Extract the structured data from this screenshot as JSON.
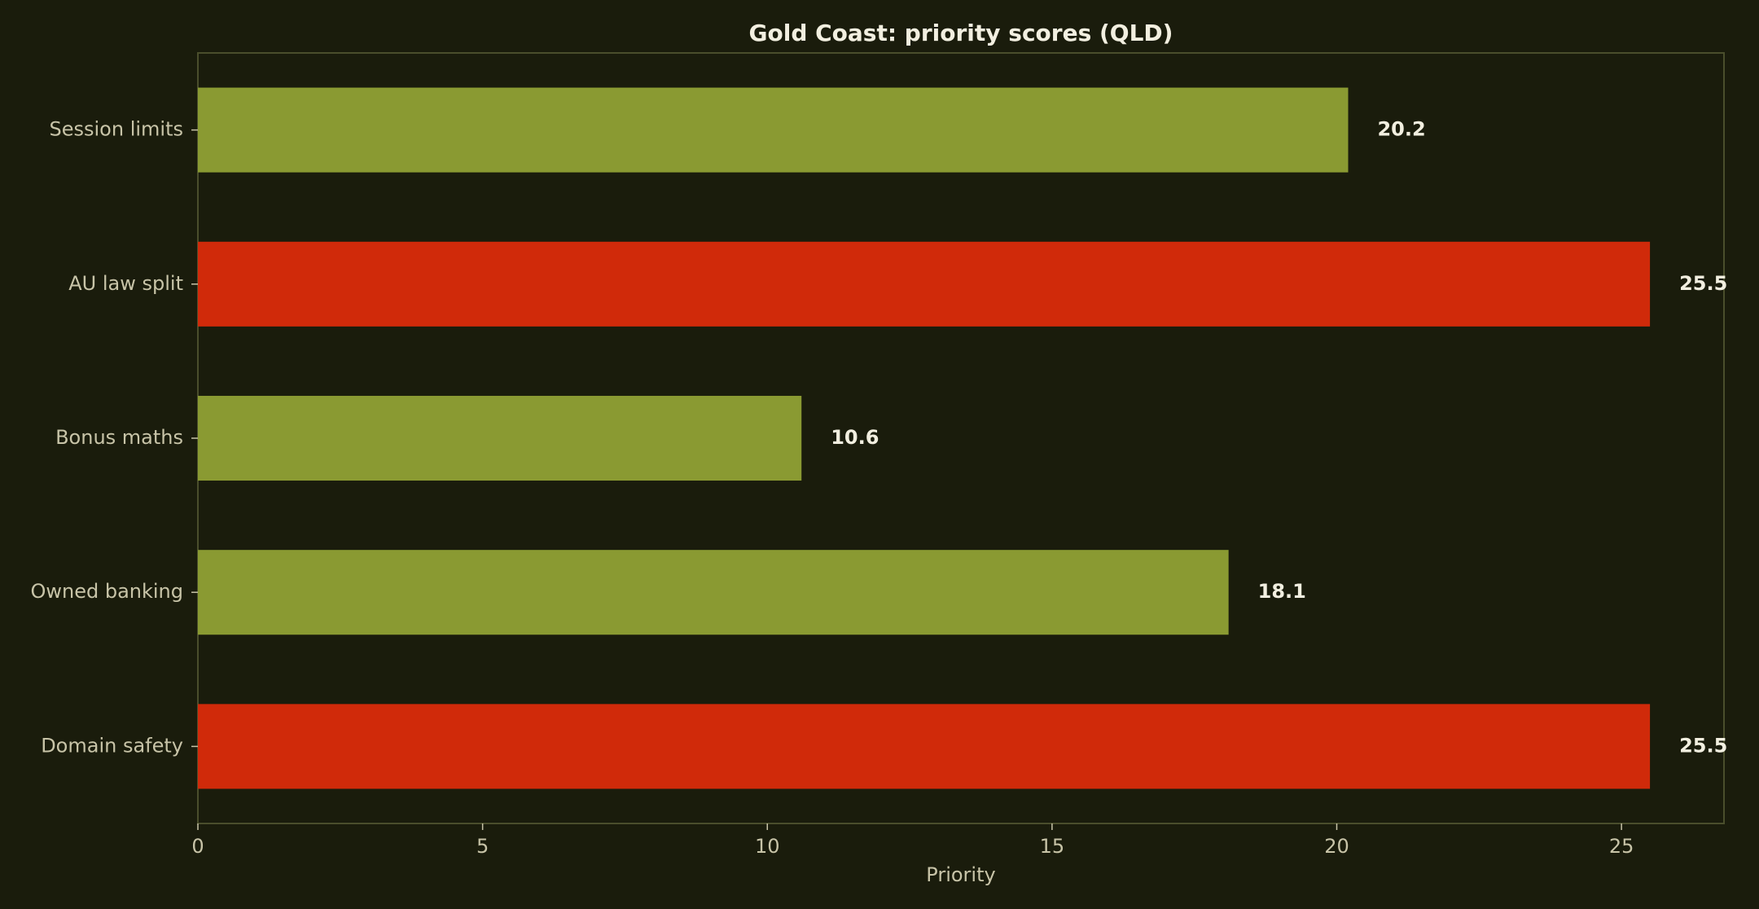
{
  "chart_data": {
    "type": "bar",
    "orientation": "horizontal",
    "title": "Gold Coast: priority scores (QLD)",
    "xlabel": "Priority",
    "ylabel": "",
    "categories": [
      "Session limits",
      "AU law split",
      "Bonus maths",
      "Owned banking",
      "Domain safety"
    ],
    "values": [
      20.2,
      25.5,
      10.6,
      18.1,
      25.5
    ],
    "value_labels": [
      "20.2",
      "25.5",
      "10.6",
      "18.1",
      "25.5"
    ],
    "xlim": [
      0,
      26.8
    ],
    "xticks": [
      0,
      5,
      10,
      15,
      20,
      25
    ],
    "grid": false,
    "colors": {
      "normal": "#8a9a32",
      "highlight": "#d02a0a",
      "background": "#1a1c0c",
      "frame": "#4a4e2c"
    },
    "highlighted": [
      false,
      true,
      false,
      false,
      true
    ]
  }
}
